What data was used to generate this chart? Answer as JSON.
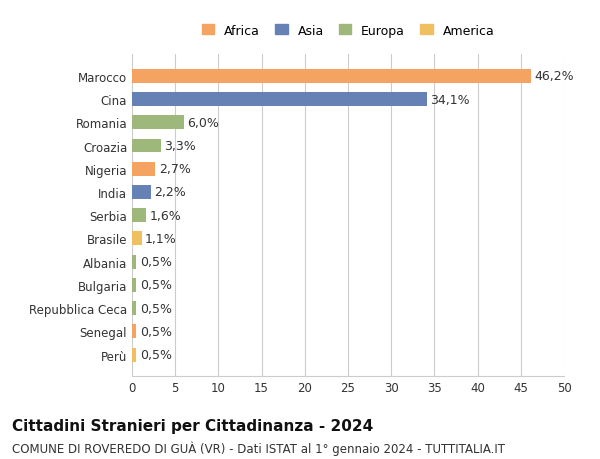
{
  "title": "Cittadini Stranieri per Cittadinanza - 2024",
  "subtitle": "COMUNE DI ROVEREDO DI GUÀ (VR) - Dati ISTAT al 1° gennaio 2024 - TUTTITALIA.IT",
  "countries": [
    "Marocco",
    "Cina",
    "Romania",
    "Croazia",
    "Nigeria",
    "India",
    "Serbia",
    "Brasile",
    "Albania",
    "Bulgaria",
    "Repubblica Ceca",
    "Senegal",
    "Perù"
  ],
  "values": [
    46.2,
    34.1,
    6.0,
    3.3,
    2.7,
    2.2,
    1.6,
    1.1,
    0.5,
    0.5,
    0.5,
    0.5,
    0.5
  ],
  "labels": [
    "46,2%",
    "34,1%",
    "6,0%",
    "3,3%",
    "2,7%",
    "2,2%",
    "1,6%",
    "1,1%",
    "0,5%",
    "0,5%",
    "0,5%",
    "0,5%",
    "0,5%"
  ],
  "continents": [
    "Africa",
    "Asia",
    "Europa",
    "Europa",
    "Africa",
    "Asia",
    "Europa",
    "America",
    "Europa",
    "Europa",
    "Europa",
    "Africa",
    "America"
  ],
  "continent_colors": {
    "Africa": "#F4A460",
    "Asia": "#6682B5",
    "Europa": "#9DB87A",
    "America": "#F0C060"
  },
  "legend_order": [
    "Africa",
    "Asia",
    "Europa",
    "America"
  ],
  "xlim": [
    0,
    50
  ],
  "xticks": [
    0,
    5,
    10,
    15,
    20,
    25,
    30,
    35,
    40,
    45,
    50
  ],
  "background_color": "#ffffff",
  "grid_color": "#cccccc",
  "bar_height": 0.6,
  "label_fontsize": 9,
  "title_fontsize": 11,
  "subtitle_fontsize": 8.5,
  "tick_fontsize": 8.5,
  "legend_fontsize": 9
}
